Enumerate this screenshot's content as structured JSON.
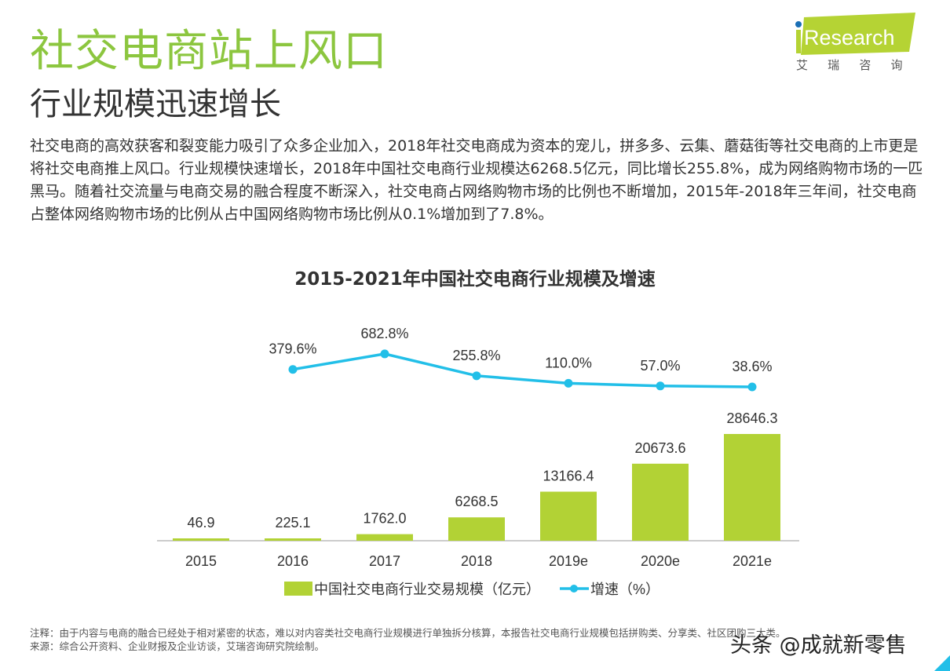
{
  "header": {
    "title": "社交电商站上风口",
    "subtitle": "行业规模迅速增长"
  },
  "logo": {
    "text": "iResearch",
    "cn": "艾 瑞 咨 询",
    "color": "#b5d334",
    "dot_color": "#1a6fb5"
  },
  "body_text": "社交电商的高效获客和裂变能力吸引了众多企业加入，2018年社交电商成为资本的宠儿，拼多多、云集、蘑菇街等社交电商的上市更是将社交电商推上风口。行业规模快速增长，2018年中国社交电商行业规模达6268.5亿元，同比增长255.8%，成为网络购物市场的一匹黑马。随着社交流量与电商交易的融合程度不断深入，社交电商占网络购物市场的比例也不断增加，2015年-2018年三年间，社交电商占整体网络购物市场的比例从占中国网络购物市场比例从0.1%增加到了7.8%。",
  "chart_data": {
    "type": "bar",
    "title": "2015-2021年中国社交电商行业规模及增速",
    "categories": [
      "2015",
      "2016",
      "2017",
      "2018",
      "2019e",
      "2020e",
      "2021e"
    ],
    "series": [
      {
        "name": "中国社交电商行业交易规模（亿元）",
        "type": "bar",
        "color": "#b2d235",
        "values": [
          46.9,
          225.1,
          1762.0,
          6268.5,
          13166.4,
          20673.6,
          28646.3
        ],
        "labels": [
          "46.9",
          "225.1",
          "1762.0",
          "6268.5",
          "13166.4",
          "20673.6",
          "28646.3"
        ]
      },
      {
        "name": "增速（%）",
        "type": "line",
        "color": "#22bfe8",
        "values": [
          null,
          379.6,
          682.8,
          255.8,
          110.0,
          57.0,
          38.6
        ],
        "labels": [
          "",
          "379.6%",
          "682.8%",
          "255.8%",
          "110.0%",
          "57.0%",
          "38.6%"
        ]
      }
    ],
    "legend": "bottom",
    "grid": false
  },
  "notes": {
    "note": "注释：由于内容与电商的融合已经处于相对紧密的状态，难以对内容类社交电商行业规模进行单独拆分核算，本报告社交电商行业规模包括拼购类、分享类、社区团购三大类。",
    "source": "来源：综合公开资料、企业财报及企业访谈，艾瑞咨询研究院绘制。"
  },
  "watermark": "头条 @成就新零售"
}
